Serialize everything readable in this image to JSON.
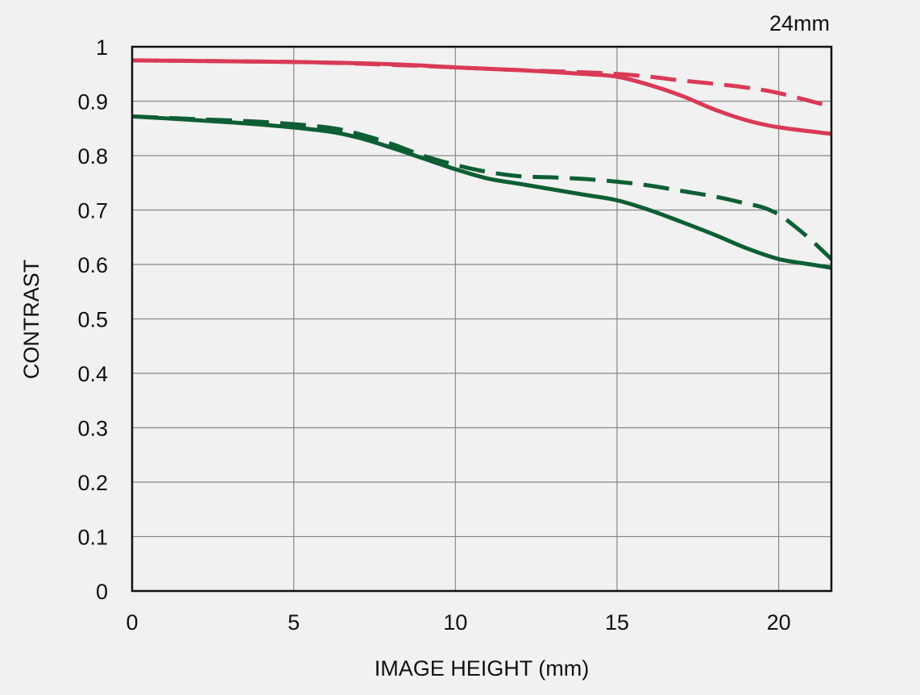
{
  "chart_data": {
    "type": "line",
    "title": "",
    "corner_label": "24mm",
    "xlabel": "IMAGE HEIGHT (mm)",
    "ylabel": "CONTRAST",
    "xlim": [
      0,
      21.63
    ],
    "ylim": [
      0,
      1
    ],
    "x_ticks": [
      0,
      5,
      10,
      15,
      20
    ],
    "y_ticks": [
      0,
      0.1,
      0.2,
      0.3,
      0.4,
      0.5,
      0.6,
      0.7,
      0.8,
      0.9,
      1
    ],
    "y_tick_labels": [
      "0",
      "0.1",
      "0.2",
      "0.3",
      "0.4",
      "0.5",
      "0.6",
      "0.7",
      "0.8",
      "0.9",
      "1"
    ],
    "grid": true,
    "legend": "none",
    "series": [
      {
        "color": "#d93a56",
        "dash": "solid",
        "x": [
          0,
          5,
          8,
          10,
          12,
          14,
          15,
          16,
          17,
          18,
          19,
          20,
          21.63
        ],
        "y": [
          0.975,
          0.972,
          0.968,
          0.962,
          0.957,
          0.95,
          0.945,
          0.93,
          0.91,
          0.885,
          0.865,
          0.852,
          0.84
        ]
      },
      {
        "color": "#d93a56",
        "dash": "dashed",
        "x": [
          0,
          5,
          8,
          10,
          12,
          14,
          15,
          16,
          17,
          18,
          19,
          20,
          21.63
        ],
        "y": [
          0.975,
          0.972,
          0.967,
          0.962,
          0.957,
          0.953,
          0.95,
          0.945,
          0.938,
          0.932,
          0.925,
          0.915,
          0.89
        ]
      },
      {
        "color": "#0e5e34",
        "dash": "solid",
        "x": [
          0,
          2,
          4,
          6,
          7,
          8,
          9,
          10,
          11,
          12,
          13,
          14,
          15,
          16,
          17,
          18,
          19,
          20,
          21,
          21.63
        ],
        "y": [
          0.872,
          0.865,
          0.857,
          0.845,
          0.833,
          0.815,
          0.795,
          0.775,
          0.758,
          0.748,
          0.738,
          0.728,
          0.718,
          0.7,
          0.678,
          0.655,
          0.63,
          0.61,
          0.6,
          0.594
        ]
      },
      {
        "color": "#0e5e34",
        "dash": "dashed",
        "x": [
          0,
          2,
          4,
          6,
          7,
          8,
          9,
          10,
          11,
          12,
          13,
          14,
          15,
          16,
          17,
          18,
          19,
          19.5,
          20,
          20.5,
          21,
          21.63
        ],
        "y": [
          0.872,
          0.867,
          0.862,
          0.852,
          0.84,
          0.822,
          0.8,
          0.783,
          0.77,
          0.762,
          0.76,
          0.757,
          0.752,
          0.745,
          0.735,
          0.725,
          0.712,
          0.705,
          0.692,
          0.67,
          0.645,
          0.61
        ]
      }
    ]
  }
}
